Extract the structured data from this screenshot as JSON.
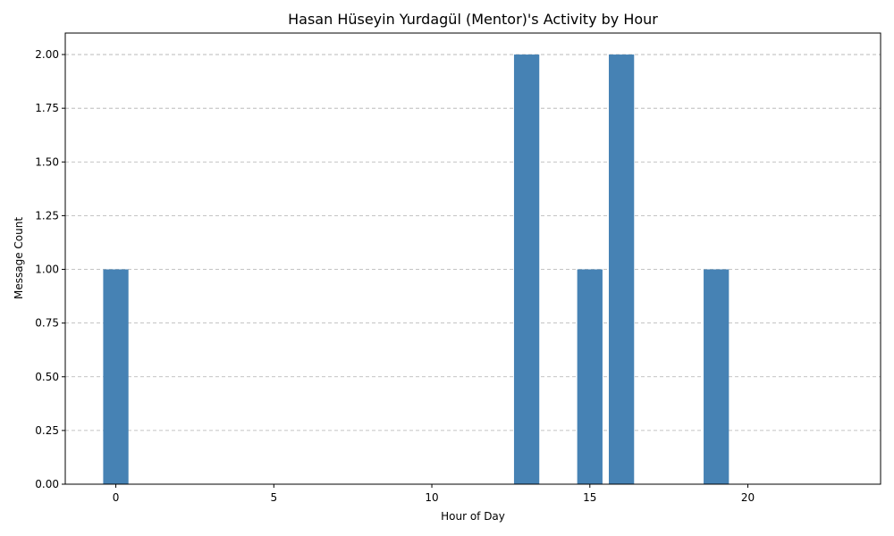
{
  "chart_data": {
    "type": "bar",
    "title": "Hasan Hüseyin Yurdagül (Mentor)'s Activity by Hour",
    "xlabel": "Hour of Day",
    "ylabel": "Message Count",
    "x": [
      0,
      13,
      15,
      16,
      19
    ],
    "values": [
      1,
      2,
      1,
      2,
      1
    ],
    "xlim": [
      -1.6,
      24.2
    ],
    "ylim": [
      0,
      2.1
    ],
    "xticks": [
      0,
      5,
      10,
      15,
      20
    ],
    "xtick_labels": [
      "0",
      "5",
      "10",
      "15",
      "20"
    ],
    "yticks": [
      0,
      0.25,
      0.5,
      0.75,
      1.0,
      1.25,
      1.5,
      1.75,
      2.0
    ],
    "ytick_labels": [
      "0.00",
      "0.25",
      "0.50",
      "0.75",
      "1.00",
      "1.25",
      "1.50",
      "1.75",
      "2.00"
    ],
    "bar_color": "#4682b4",
    "grid": "y-dashed",
    "legend": "none"
  }
}
